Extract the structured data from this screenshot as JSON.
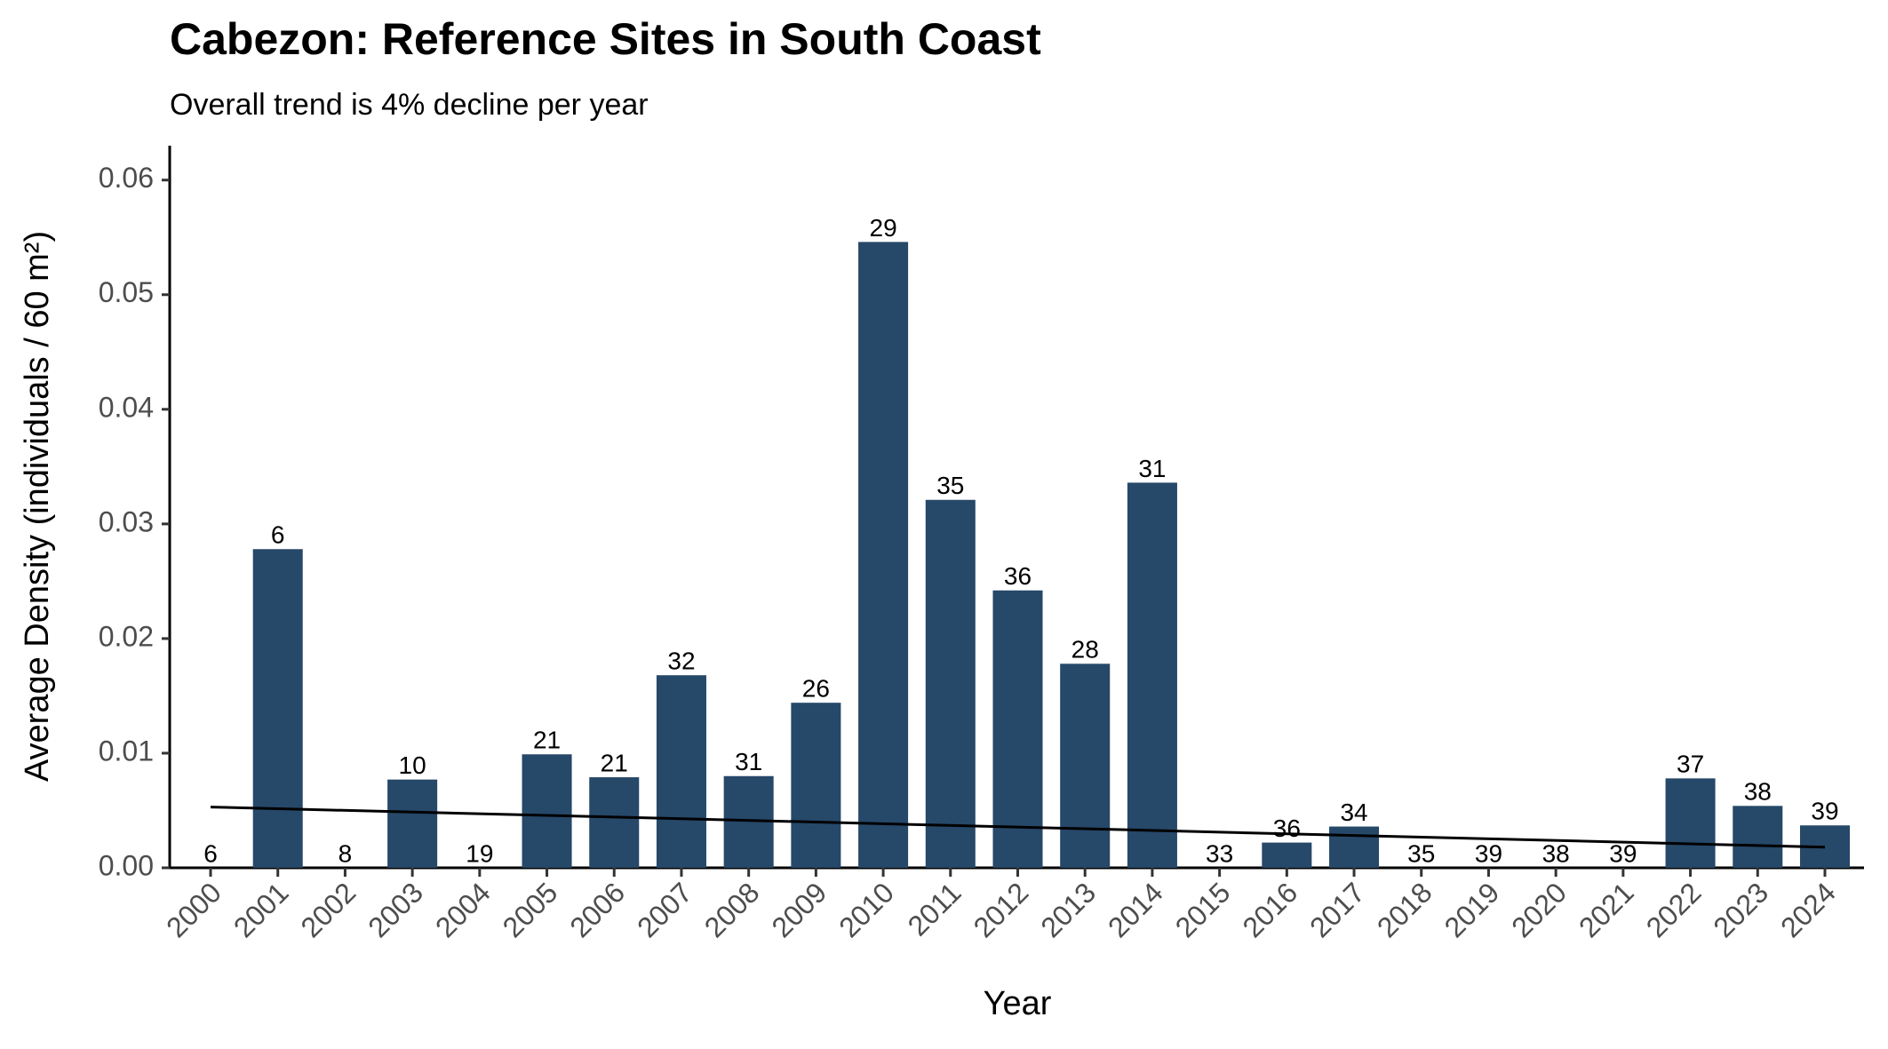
{
  "chart_data": {
    "type": "bar",
    "title": "Cabezon: Reference Sites in South Coast",
    "subtitle": "Overall trend is 4% decline per year",
    "x_label": "Year",
    "y_label": "Average Density (individuals / 60 m²)",
    "categories": [
      "2000",
      "2001",
      "2002",
      "2003",
      "2004",
      "2005",
      "2006",
      "2007",
      "2008",
      "2009",
      "2010",
      "2011",
      "2012",
      "2013",
      "2014",
      "2015",
      "2016",
      "2017",
      "2018",
      "2019",
      "2020",
      "2021",
      "2022",
      "2023",
      "2024"
    ],
    "values": [
      0,
      0.0278,
      0,
      0.0077,
      0,
      0.0099,
      0.0079,
      0.0168,
      0.008,
      0.0144,
      0.0546,
      0.0321,
      0.0242,
      0.0178,
      0.0336,
      0,
      0.0022,
      0.0036,
      0,
      0,
      0,
      0,
      0.0078,
      0.0054,
      0.0037
    ],
    "bar_labels": [
      6,
      6,
      8,
      10,
      19,
      21,
      21,
      32,
      31,
      26,
      29,
      35,
      36,
      28,
      31,
      33,
      36,
      34,
      35,
      39,
      38,
      39,
      37,
      38,
      39
    ],
    "color": "#264869",
    "trend": {
      "color": "#000000",
      "values": [
        0.0053,
        0.0018
      ]
    },
    "ylim": [
      0,
      0.063
    ],
    "yticks": [
      {
        "value": 0,
        "label": "0.00"
      },
      0.01,
      0.02,
      0.03,
      0.04,
      0.05,
      0.06
    ],
    "grid": false
  }
}
